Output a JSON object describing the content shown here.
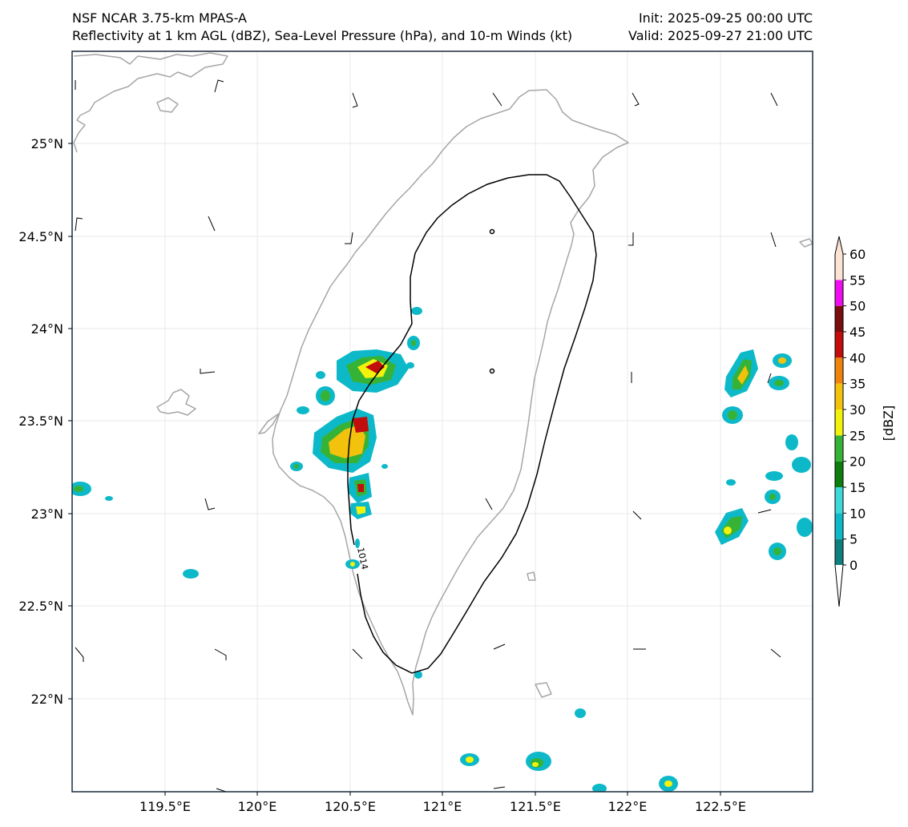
{
  "header": {
    "title_left": "NSF NCAR 3.75-km MPAS-A",
    "subtitle_left": "Reflectivity at 1 km AGL (dBZ), Sea-Level Pressure (hPa), and 10-m Winds (kt)",
    "init": "Init: 2025-09-25 00:00 UTC",
    "valid": "Valid: 2025-09-27 21:00 UTC"
  },
  "map": {
    "region": "Taiwan",
    "lon_ticks": [
      "119.5°E",
      "120°E",
      "120.5°E",
      "121°E",
      "121.5°E",
      "122°E",
      "122.5°E"
    ],
    "lat_ticks": [
      "25°N",
      "24.5°N",
      "24°N",
      "23.5°N",
      "23°N",
      "22.5°N",
      "22°N"
    ],
    "gridlines": true,
    "isobar_label": "1014",
    "coastline_color": "#a6a6a6",
    "isobar_color": "#000000"
  },
  "colorbar": {
    "title": "[dBZ]",
    "levels": [
      "0",
      "5",
      "10",
      "15",
      "20",
      "25",
      "30",
      "35",
      "40",
      "45",
      "50",
      "55",
      "60"
    ],
    "colors": [
      "#ffffff",
      "#0e7f7f",
      "#0db9c9",
      "#3ed8d8",
      "#0d7d0d",
      "#36b336",
      "#f2f20d",
      "#f2c20d",
      "#ef840d",
      "#c20d0d",
      "#7a0d0d",
      "#ee0dee",
      "#fde3d4"
    ],
    "extend": "both"
  }
}
